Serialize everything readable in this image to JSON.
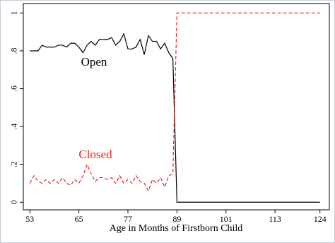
{
  "chart_data": {
    "type": "line",
    "xlabel": "Age in Months of Firstborn Child",
    "x": [
      53,
      54,
      55,
      56,
      57,
      58,
      59,
      60,
      61,
      62,
      63,
      64,
      65,
      66,
      67,
      68,
      69,
      70,
      71,
      72,
      73,
      74,
      75,
      76,
      77,
      78,
      79,
      80,
      81,
      82,
      83,
      84,
      85,
      86,
      87,
      88,
      89,
      124
    ],
    "series": [
      {
        "name": "Open",
        "color": "#000000",
        "dash": false,
        "values": [
          0.8,
          0.8,
          0.8,
          0.83,
          0.82,
          0.82,
          0.82,
          0.83,
          0.83,
          0.82,
          0.84,
          0.84,
          0.82,
          0.79,
          0.83,
          0.85,
          0.83,
          0.86,
          0.86,
          0.86,
          0.87,
          0.83,
          0.85,
          0.89,
          0.81,
          0.81,
          0.82,
          0.86,
          0.78,
          0.88,
          0.85,
          0.85,
          0.81,
          0.84,
          0.79,
          0.76,
          0.0,
          0.0
        ]
      },
      {
        "name": "Closed",
        "color": "#e8262a",
        "dash": true,
        "values": [
          0.1,
          0.14,
          0.11,
          0.1,
          0.12,
          0.1,
          0.12,
          0.1,
          0.13,
          0.1,
          0.09,
          0.12,
          0.1,
          0.14,
          0.2,
          0.15,
          0.11,
          0.13,
          0.13,
          0.12,
          0.13,
          0.1,
          0.14,
          0.1,
          0.12,
          0.1,
          0.14,
          0.11,
          0.1,
          0.06,
          0.12,
          0.1,
          0.13,
          0.08,
          0.14,
          0.15,
          1.0,
          1.0
        ]
      }
    ],
    "xlim": [
      51.4,
      126.3
    ],
    "ylim": [
      -0.04,
      1.05
    ],
    "xticks": [
      53,
      65,
      77,
      89,
      101,
      113,
      124
    ],
    "yticks": [
      0,
      {
        "value": 0.2,
        "label": ".2"
      },
      {
        "value": 0.4,
        "label": ".4"
      },
      {
        "value": 0.6,
        "label": ".6"
      },
      {
        "value": 0.8,
        "label": ".8"
      },
      1
    ],
    "grid": false
  }
}
